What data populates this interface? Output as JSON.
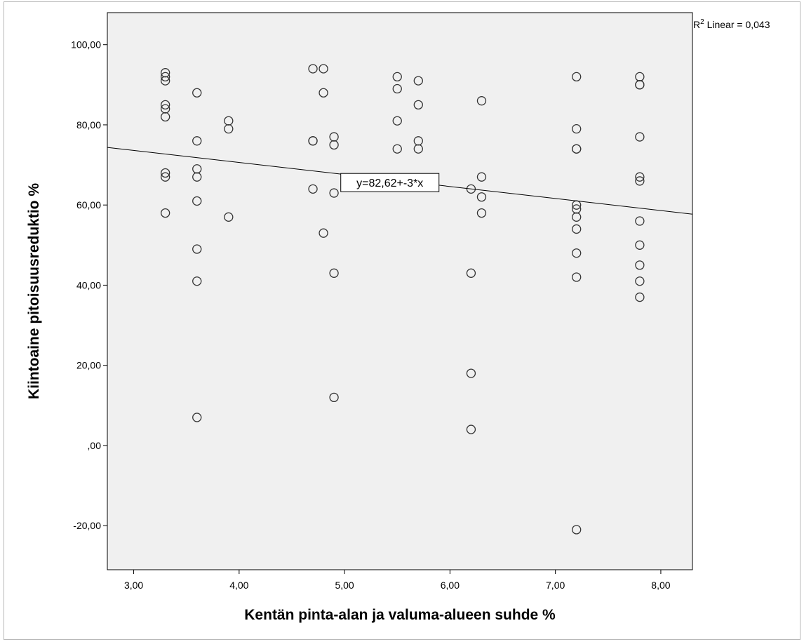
{
  "chart_data": {
    "type": "scatter",
    "xlabel": "Kentän pinta-alan ja valuma-alueen suhde %",
    "ylabel": "Kiintoaine pitoisuusreduktio %",
    "xlim": [
      2.75,
      8.3
    ],
    "ylim": [
      -31,
      108
    ],
    "x_ticks": [
      3,
      4,
      5,
      6,
      7,
      8
    ],
    "x_tick_labels": [
      "3,00",
      "4,00",
      "5,00",
      "6,00",
      "7,00",
      "8,00"
    ],
    "y_ticks": [
      -20,
      0,
      20,
      40,
      60,
      80,
      100
    ],
    "y_tick_labels": [
      "-20,00",
      ",00",
      "20,00",
      "40,00",
      "60,00",
      "80,00",
      "100,00"
    ],
    "points": [
      [
        3.3,
        93
      ],
      [
        3.3,
        92
      ],
      [
        3.3,
        91
      ],
      [
        3.3,
        85
      ],
      [
        3.3,
        84
      ],
      [
        3.3,
        82
      ],
      [
        3.3,
        68
      ],
      [
        3.3,
        67
      ],
      [
        3.3,
        58
      ],
      [
        3.6,
        88
      ],
      [
        3.6,
        76
      ],
      [
        3.6,
        69
      ],
      [
        3.6,
        67
      ],
      [
        3.6,
        61
      ],
      [
        3.6,
        49
      ],
      [
        3.6,
        41
      ],
      [
        3.6,
        7
      ],
      [
        3.9,
        81
      ],
      [
        3.9,
        79
      ],
      [
        3.9,
        57
      ],
      [
        4.7,
        94
      ],
      [
        4.7,
        76
      ],
      [
        4.7,
        76
      ],
      [
        4.7,
        64
      ],
      [
        4.8,
        94
      ],
      [
        4.8,
        88
      ],
      [
        4.8,
        53
      ],
      [
        4.9,
        77
      ],
      [
        4.9,
        75
      ],
      [
        4.9,
        63
      ],
      [
        4.9,
        43
      ],
      [
        4.9,
        12
      ],
      [
        5.5,
        92
      ],
      [
        5.5,
        89
      ],
      [
        5.5,
        81
      ],
      [
        5.5,
        74
      ],
      [
        5.7,
        91
      ],
      [
        5.7,
        85
      ],
      [
        5.7,
        76
      ],
      [
        5.7,
        74
      ],
      [
        6.2,
        64
      ],
      [
        6.2,
        43
      ],
      [
        6.2,
        18
      ],
      [
        6.2,
        4
      ],
      [
        6.3,
        86
      ],
      [
        6.3,
        67
      ],
      [
        6.3,
        62
      ],
      [
        6.3,
        58
      ],
      [
        7.2,
        92
      ],
      [
        7.2,
        79
      ],
      [
        7.2,
        74
      ],
      [
        7.2,
        74
      ],
      [
        7.2,
        60
      ],
      [
        7.2,
        59
      ],
      [
        7.2,
        57
      ],
      [
        7.2,
        54
      ],
      [
        7.2,
        48
      ],
      [
        7.2,
        42
      ],
      [
        7.2,
        -21
      ],
      [
        7.8,
        92
      ],
      [
        7.8,
        90
      ],
      [
        7.8,
        90
      ],
      [
        7.8,
        77
      ],
      [
        7.8,
        67
      ],
      [
        7.8,
        66
      ],
      [
        7.8,
        56
      ],
      [
        7.8,
        50
      ],
      [
        7.8,
        45
      ],
      [
        7.8,
        41
      ],
      [
        7.8,
        37
      ]
    ],
    "fit_line": {
      "intercept": 82.62,
      "slope": -3.0
    },
    "fit_label": "y=82,62+-3*x",
    "fit_label_at": [
      5.43,
      65.6
    ],
    "r2_prefix": "R",
    "r2_sup": "2",
    "r2_text": " Linear = 0,043",
    "colors": {
      "plot_bg": "#f0f0f0",
      "marker": "#333333",
      "line": "#000000",
      "axis": "#000000"
    },
    "grid": false
  }
}
